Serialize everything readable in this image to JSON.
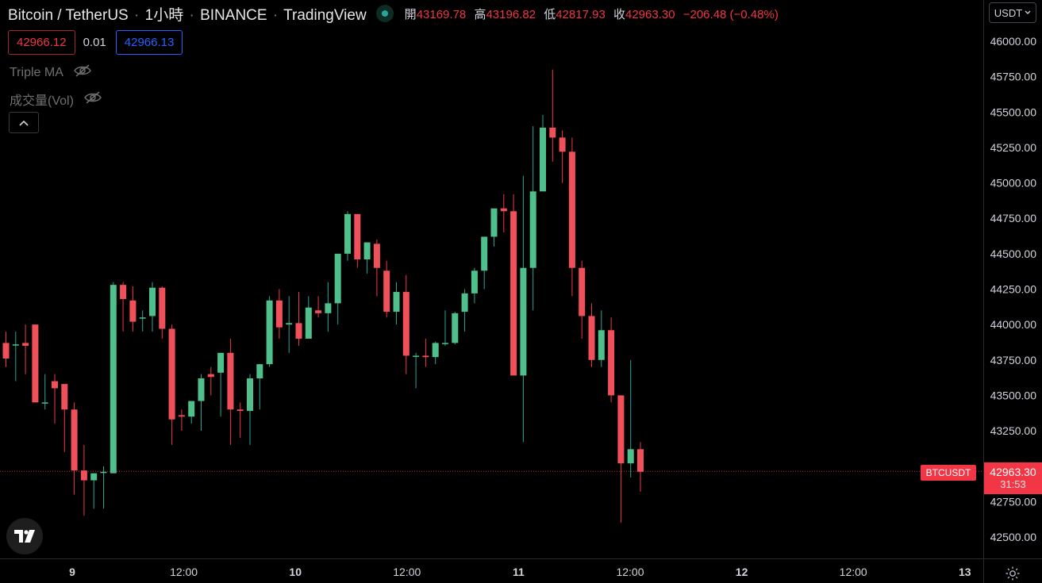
{
  "header": {
    "symbol": "Bitcoin / TetherUS",
    "interval": "1小時",
    "exchange": "BINANCE",
    "source": "TradingView",
    "sep": "·",
    "ohlc": {
      "open_label": "開",
      "open": "43169.78",
      "high_label": "高",
      "high": "43196.82",
      "low_label": "低",
      "low": "42817.93",
      "close_label": "收",
      "close": "42963.30",
      "change": "−206.48 (−0.48%)"
    }
  },
  "trade": {
    "sell_price": "42966.12",
    "spread": "0.01",
    "buy_price": "42966.13"
  },
  "indicators": [
    {
      "name": "Triple MA"
    },
    {
      "name": "成交量(Vol)"
    }
  ],
  "currency": {
    "label": "USDT"
  },
  "price_tag": {
    "symbol": "BTCUSDT",
    "price": "42963.30",
    "countdown": "31:53"
  },
  "colors": {
    "up": "#26a69a",
    "down": "#f23645",
    "up_body": "#4fbf8c",
    "down_body": "#f0505a"
  },
  "chart_data": {
    "type": "candlestick",
    "y_ticks": [
      "46000.00",
      "45750.00",
      "45500.00",
      "45250.00",
      "45000.00",
      "44750.00",
      "44500.00",
      "44250.00",
      "44000.00",
      "43750.00",
      "43500.00",
      "43250.00",
      "42750.00",
      "42500.00"
    ],
    "y_ticks_values": [
      46000,
      45750,
      45500,
      45250,
      45000,
      44750,
      44500,
      44250,
      44000,
      43750,
      43500,
      43250,
      42750,
      42500
    ],
    "x_ticks": [
      {
        "label": "9",
        "bold": true
      },
      {
        "label": "12:00"
      },
      {
        "label": "10",
        "bold": true
      },
      {
        "label": "12:00"
      },
      {
        "label": "11",
        "bold": true
      },
      {
        "label": "12:00"
      },
      {
        "label": "12",
        "bold": true
      },
      {
        "label": "12:00"
      },
      {
        "label": "13",
        "bold": true
      }
    ],
    "last_price": 42963.3,
    "candles": [
      [
        43870,
        43950,
        43760,
        43700
      ],
      [
        43860,
        43950,
        43860,
        43600
      ],
      [
        43870,
        44000,
        43850,
        43650
      ],
      [
        44000,
        44000,
        43450,
        43450
      ],
      [
        43450,
        43650,
        43450,
        43400
      ],
      [
        43600,
        43650,
        43550,
        43300
      ],
      [
        43580,
        43580,
        43400,
        43100
      ],
      [
        43400,
        43450,
        42970,
        42800
      ],
      [
        42970,
        43150,
        42900,
        42650
      ],
      [
        42900,
        42950,
        42950,
        42700
      ],
      [
        42960,
        43000,
        42960,
        42700
      ],
      [
        42950,
        44300,
        44280,
        42950
      ],
      [
        44280,
        44300,
        44180,
        43950
      ],
      [
        44170,
        44270,
        44020,
        43950
      ],
      [
        44050,
        44100,
        44050,
        43950
      ],
      [
        44060,
        44300,
        44260,
        43950
      ],
      [
        44260,
        44270,
        43970,
        43900
      ],
      [
        43970,
        44000,
        43330,
        43150
      ],
      [
        43360,
        43400,
        43350,
        43250
      ],
      [
        43350,
        43450,
        43460,
        43300
      ],
      [
        43460,
        43650,
        43620,
        43250
      ],
      [
        43650,
        43700,
        43630,
        43500
      ],
      [
        43660,
        43800,
        43800,
        43350
      ],
      [
        43800,
        43900,
        43400,
        43150
      ],
      [
        43400,
        43450,
        43390,
        43200
      ],
      [
        43390,
        43650,
        43620,
        43150
      ],
      [
        43620,
        43700,
        43720,
        43400
      ],
      [
        43720,
        44200,
        44170,
        43700
      ],
      [
        44170,
        44250,
        43980,
        43900
      ],
      [
        44000,
        44200,
        44010,
        43800
      ],
      [
        44010,
        44230,
        43900,
        43850
      ],
      [
        43900,
        44200,
        44120,
        43950
      ],
      [
        44100,
        44200,
        44080,
        44050
      ],
      [
        44080,
        44300,
        44150,
        43950
      ],
      [
        44150,
        44400,
        44500,
        44000
      ],
      [
        44500,
        44800,
        44780,
        44450
      ],
      [
        44780,
        44780,
        44460,
        44400
      ],
      [
        44460,
        44580,
        44580,
        44360
      ],
      [
        44570,
        44600,
        44400,
        44200
      ],
      [
        44380,
        44450,
        44090,
        44050
      ],
      [
        44090,
        44300,
        44230,
        44000
      ],
      [
        44230,
        44350,
        43780,
        43650
      ],
      [
        43780,
        43800,
        43780,
        43550
      ],
      [
        43780,
        43900,
        43770,
        43700
      ],
      [
        43770,
        43880,
        43870,
        43720
      ],
      [
        43870,
        44100,
        43870,
        43850
      ],
      [
        43870,
        44090,
        44080,
        43860
      ],
      [
        44090,
        44250,
        44220,
        43950
      ],
      [
        44220,
        44400,
        44380,
        44150
      ],
      [
        44380,
        44600,
        44620,
        44250
      ],
      [
        44620,
        44800,
        44820,
        44550
      ],
      [
        44820,
        44920,
        44800,
        44650
      ],
      [
        44800,
        44920,
        43640,
        43700
      ],
      [
        43640,
        45050,
        44400,
        43170
      ],
      [
        44400,
        45400,
        44940,
        44100
      ],
      [
        44940,
        45480,
        45390,
        45100
      ],
      [
        45390,
        45800,
        45320,
        45150
      ],
      [
        45320,
        45370,
        45220,
        45000
      ],
      [
        45220,
        45320,
        44400,
        44200
      ],
      [
        44400,
        44450,
        44060,
        43900
      ],
      [
        44060,
        44150,
        43750,
        43700
      ],
      [
        43750,
        44100,
        43960,
        43700
      ],
      [
        43960,
        44050,
        43500,
        43450
      ],
      [
        43500,
        43500,
        43020,
        42600
      ],
      [
        43020,
        43750,
        43120,
        42920
      ],
      [
        43120,
        43170,
        42960,
        42820
      ]
    ]
  }
}
